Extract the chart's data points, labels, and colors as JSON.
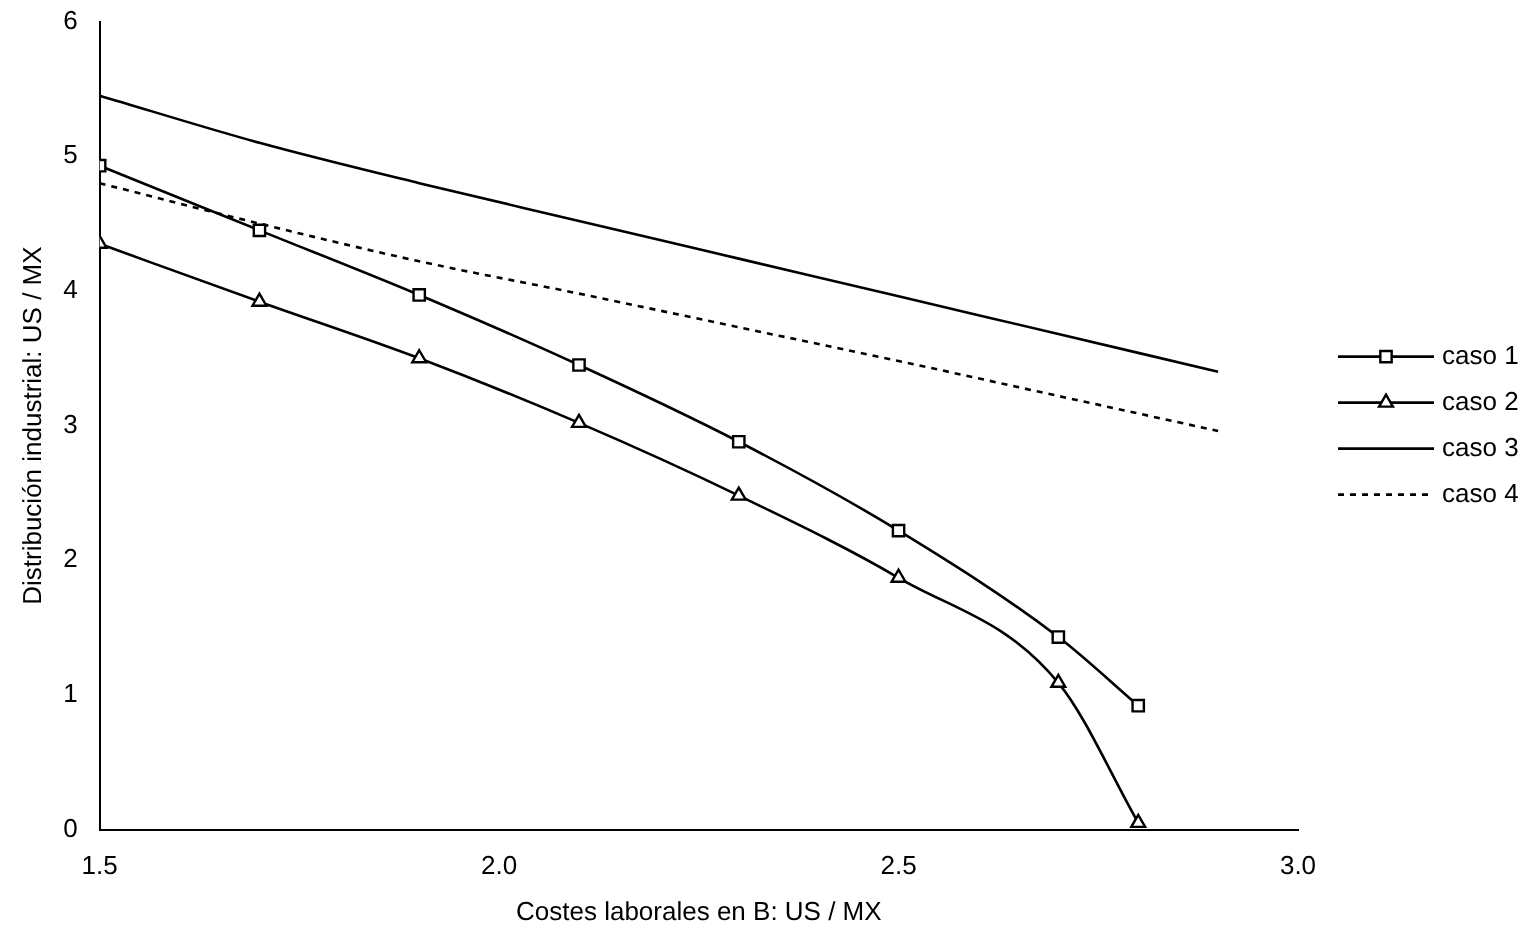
{
  "chart_data": {
    "type": "line",
    "xlabel": "Costes laborales en B: US / MX",
    "ylabel": "Distribución industrial: US / MX",
    "xlim": [
      1.5,
      3.0
    ],
    "xticks": [
      {
        "value": 1.5,
        "label": "1.5"
      },
      {
        "value": 2.0,
        "label": "2.0"
      },
      {
        "value": 2.5,
        "label": "2.5"
      },
      {
        "value": 3.0,
        "label": "3.0"
      }
    ],
    "ylim": [
      0,
      6
    ],
    "yticks": [
      0,
      1,
      2,
      3,
      4,
      5,
      6
    ],
    "grid": false,
    "legend": "right",
    "series": [
      {
        "name": "caso 1",
        "color": "#000000",
        "marker": "square",
        "line_style": "solid",
        "x": [
          1.5,
          1.7,
          1.9,
          2.1,
          2.3,
          2.5,
          2.7,
          2.8
        ],
        "values": [
          4.93,
          4.45,
          3.97,
          3.45,
          2.88,
          2.22,
          1.43,
          0.92
        ]
      },
      {
        "name": "caso 2",
        "color": "#000000",
        "marker": "triangle",
        "line_style": "solid",
        "x": [
          1.5,
          1.7,
          1.9,
          2.1,
          2.3,
          2.5,
          2.7,
          2.8
        ],
        "values": [
          4.35,
          3.92,
          3.5,
          3.02,
          2.48,
          1.87,
          1.09,
          0.05
        ]
      },
      {
        "name": "caso 3",
        "color": "#000000",
        "marker": "none",
        "line_style": "solid",
        "x": [
          1.5,
          1.7,
          1.9,
          2.1,
          2.3,
          2.5,
          2.7,
          2.9
        ],
        "values": [
          5.45,
          5.1,
          4.8,
          4.52,
          4.24,
          3.96,
          3.68,
          3.4
        ]
      },
      {
        "name": "caso 4",
        "color": "#000000",
        "marker": "none",
        "line_style": "dotted",
        "x": [
          1.5,
          1.7,
          1.9,
          2.1,
          2.3,
          2.5,
          2.7,
          2.9
        ],
        "values": [
          4.8,
          4.5,
          4.22,
          3.98,
          3.73,
          3.48,
          3.22,
          2.96
        ]
      }
    ]
  }
}
